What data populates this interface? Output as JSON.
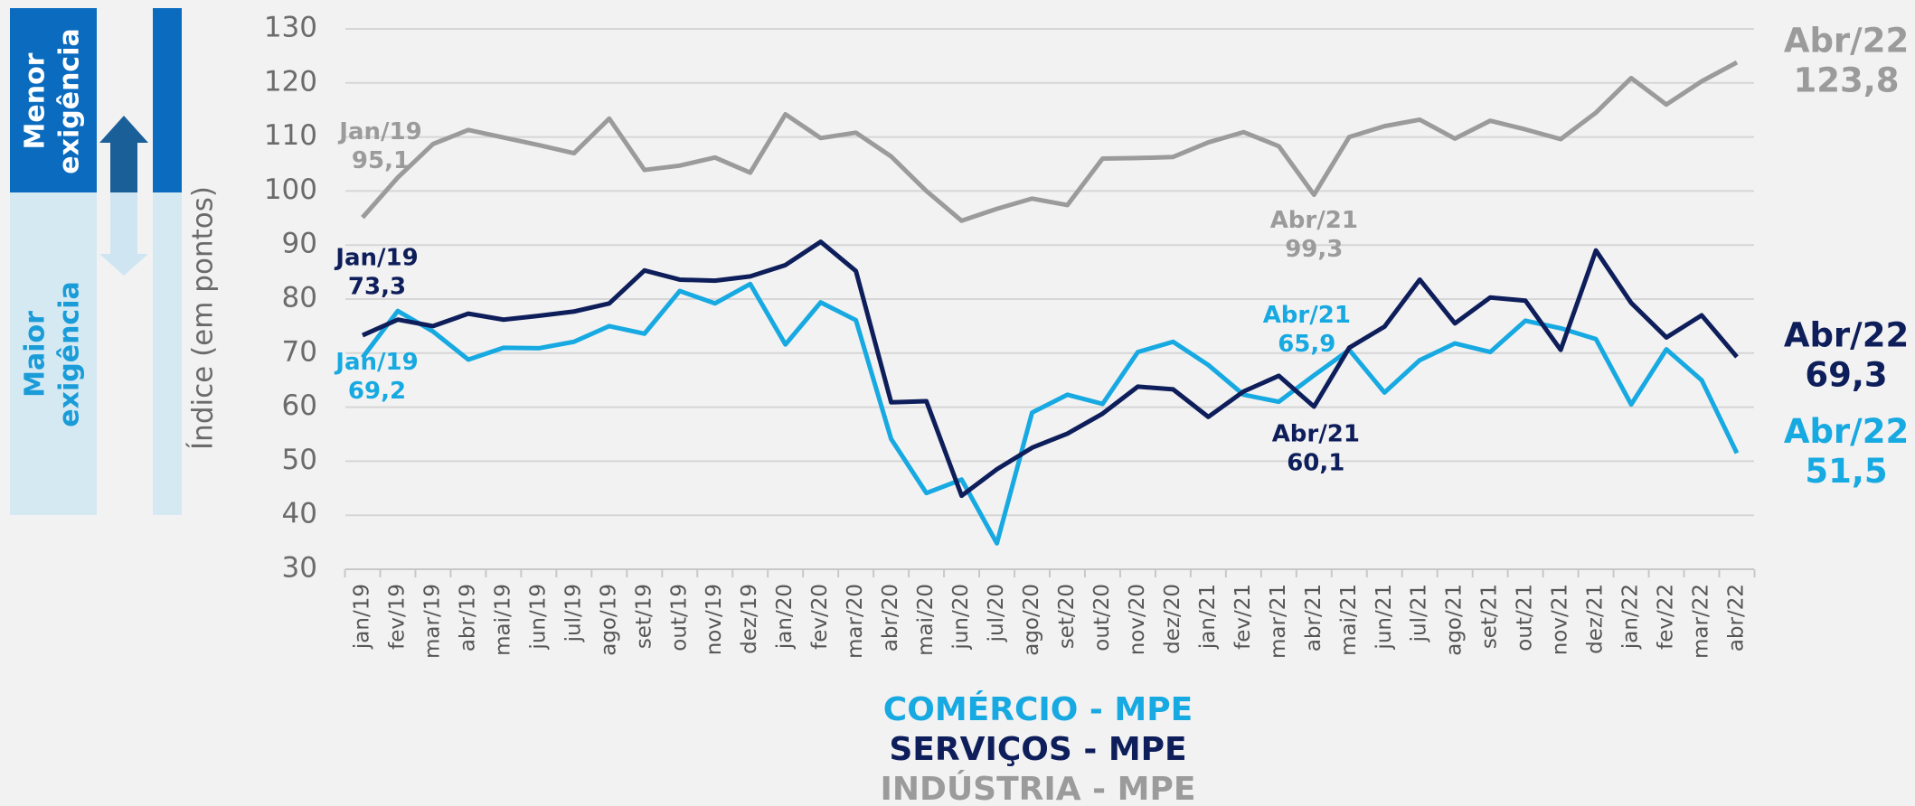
{
  "scale_panel": {
    "top_label": [
      "Menor",
      "exigência"
    ],
    "bottom_label": [
      "Maior",
      "exigência"
    ]
  },
  "chart_data": {
    "type": "line",
    "y_label": "Índice (em pontos)",
    "categories": [
      "jan/19",
      "fev/19",
      "mar/19",
      "abr/19",
      "mai/19",
      "jun/19",
      "jul/19",
      "ago/19",
      "set/19",
      "out/19",
      "nov/19",
      "dez/19",
      "jan/20",
      "fev/20",
      "mar/20",
      "abr/20",
      "mai/20",
      "jun/20",
      "jul/20",
      "ago/20",
      "set/20",
      "out/20",
      "nov/20",
      "dez/20",
      "jan/21",
      "fev/21",
      "mar/21",
      "abr/21",
      "mai/21",
      "jun/21",
      "jul/21",
      "ago/21",
      "set/21",
      "out/21",
      "nov/21",
      "dez/21",
      "jan/22",
      "fev/22",
      "mar/22",
      "abr/22"
    ],
    "ylim": [
      30,
      130
    ],
    "yticks": [
      30,
      40,
      50,
      60,
      70,
      80,
      90,
      100,
      110,
      120,
      130
    ],
    "grid": true,
    "series": [
      {
        "name": "COMÉRCIO - MPE",
        "color": "#17a9e1",
        "values": [
          69.2,
          77.8,
          74,
          68.8,
          71,
          70.9,
          72.1,
          75,
          73.6,
          81.5,
          79.2,
          82.8,
          71.6,
          79.4,
          76.1,
          54.1,
          44.1,
          46.6,
          34.8,
          59,
          62.3,
          60.6,
          70.2,
          72.1,
          67.8,
          62.3,
          61,
          65.9,
          70.6,
          62.7,
          68.7,
          71.8,
          70.2,
          76,
          74.6,
          72.6,
          60.5,
          70.7,
          65,
          51.5
        ],
        "point_labels": [
          "Jan/19",
          null,
          null,
          null,
          null,
          null,
          null,
          null,
          null,
          null,
          null,
          null,
          null,
          null,
          null,
          null,
          null,
          null,
          null,
          null,
          null,
          null,
          null,
          null,
          null,
          null,
          null,
          "Abr/21",
          null,
          null,
          null,
          null,
          null,
          null,
          null,
          null,
          null,
          null,
          null,
          "Abr/22"
        ],
        "value_labels": [
          "69,2",
          null,
          null,
          null,
          null,
          null,
          null,
          null,
          null,
          null,
          null,
          null,
          null,
          null,
          null,
          null,
          null,
          null,
          null,
          null,
          null,
          null,
          null,
          null,
          null,
          null,
          null,
          "65,9",
          null,
          null,
          null,
          null,
          null,
          null,
          null,
          null,
          null,
          null,
          null,
          "51,5"
        ]
      },
      {
        "name": "SERVIÇOS - MPE",
        "color": "#0e1e5b",
        "values": [
          73.3,
          76.2,
          75,
          77.3,
          76.2,
          76.9,
          77.7,
          79.2,
          85.3,
          83.6,
          83.4,
          84.2,
          86.3,
          90.6,
          85.2,
          60.9,
          61.1,
          43.6,
          48.5,
          52.5,
          55.1,
          58.8,
          63.8,
          63.3,
          58.2,
          62.9,
          65.8,
          60.1,
          71,
          74.9,
          83.6,
          75.5,
          80.3,
          79.7,
          70.6,
          89,
          79.3,
          72.9,
          77,
          69.3
        ],
        "point_labels": [
          "Jan/19",
          null,
          null,
          null,
          null,
          null,
          null,
          null,
          null,
          null,
          null,
          null,
          null,
          null,
          null,
          null,
          null,
          null,
          null,
          null,
          null,
          null,
          null,
          null,
          null,
          null,
          null,
          "Abr/21",
          null,
          null,
          null,
          null,
          null,
          null,
          null,
          null,
          null,
          null,
          null,
          "Abr/22"
        ],
        "value_labels": [
          "73,3",
          null,
          null,
          null,
          null,
          null,
          null,
          null,
          null,
          null,
          null,
          null,
          null,
          null,
          null,
          null,
          null,
          null,
          null,
          null,
          null,
          null,
          null,
          null,
          null,
          null,
          null,
          "60,1",
          null,
          null,
          null,
          null,
          null,
          null,
          null,
          null,
          null,
          null,
          null,
          "69,3"
        ]
      },
      {
        "name": "INDÚSTRIA - MPE",
        "color": "#9b9b9b",
        "values": [
          95.1,
          102.5,
          108.7,
          111.3,
          109.9,
          108.5,
          107,
          113.4,
          103.9,
          104.7,
          106.2,
          103.4,
          114.2,
          109.8,
          110.8,
          106.4,
          100,
          94.5,
          96.7,
          98.6,
          97.4,
          106,
          106.1,
          106.3,
          109,
          110.9,
          108.3,
          99.3,
          110,
          112,
          113.2,
          109.7,
          113,
          111.4,
          109.6,
          114.5,
          120.9,
          116,
          120.3,
          123.8
        ],
        "point_labels": [
          "Jan/19",
          null,
          null,
          null,
          null,
          null,
          null,
          null,
          null,
          null,
          null,
          null,
          null,
          null,
          null,
          null,
          null,
          null,
          null,
          null,
          null,
          null,
          null,
          null,
          null,
          null,
          null,
          "Abr/21",
          null,
          null,
          null,
          null,
          null,
          null,
          null,
          null,
          null,
          null,
          null,
          "Abr/22"
        ],
        "value_labels": [
          "95,1",
          null,
          null,
          null,
          null,
          null,
          null,
          null,
          null,
          null,
          null,
          null,
          null,
          null,
          null,
          null,
          null,
          null,
          null,
          null,
          null,
          null,
          null,
          null,
          null,
          null,
          null,
          "99,3",
          null,
          null,
          null,
          null,
          null,
          null,
          null,
          null,
          null,
          null,
          null,
          "123,8"
        ]
      }
    ]
  }
}
